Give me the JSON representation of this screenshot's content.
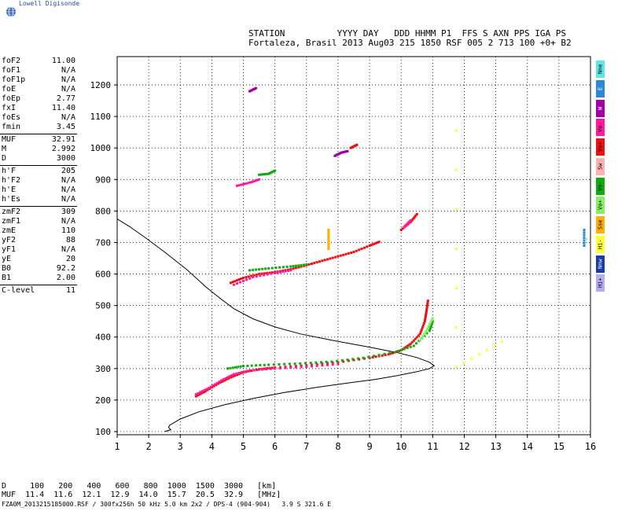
{
  "brand": {
    "title": "Lowell Digisonde",
    "logo_icon": "globe-icon"
  },
  "header": {
    "line1": "STATION          YYYY DAY   DDD HHMM P1  FFS S AXN PPS IGA PS",
    "line2": "Fortaleza, Brasil 2013 Aug03 215 1850 RSF 005 2 713 100 +0+ B2"
  },
  "params_groups": [
    [
      {
        "k": "foF2",
        "v": "11.00"
      },
      {
        "k": "foF1",
        "v": "N/A"
      },
      {
        "k": "foF1p",
        "v": "N/A"
      },
      {
        "k": "foE",
        "v": "N/A"
      },
      {
        "k": "foEp",
        "v": "2.77"
      },
      {
        "k": "fxI",
        "v": "11.40"
      },
      {
        "k": "foEs",
        "v": "N/A"
      },
      {
        "k": "fmin",
        "v": "3.45"
      }
    ],
    [
      {
        "k": "MUF",
        "v": "32.91"
      },
      {
        "k": "M",
        "v": "2.992"
      },
      {
        "k": "D",
        "v": "3000"
      }
    ],
    [
      {
        "k": "h'F",
        "v": "205"
      },
      {
        "k": "h'F2",
        "v": "N/A"
      },
      {
        "k": "h'E",
        "v": "N/A"
      },
      {
        "k": "h'Es",
        "v": "N/A"
      }
    ],
    [
      {
        "k": "zmF2",
        "v": "309"
      },
      {
        "k": "zmF1",
        "v": "N/A"
      },
      {
        "k": "zmE",
        "v": "110"
      },
      {
        "k": "yF2",
        "v": "88"
      },
      {
        "k": "yF1",
        "v": "N/A"
      },
      {
        "k": "yE",
        "v": "20"
      },
      {
        "k": "B0",
        "v": "92.2"
      },
      {
        "k": "B1",
        "v": "2.00"
      }
    ],
    [
      {
        "k": "C-level",
        "v": "11"
      }
    ]
  ],
  "legend": [
    {
      "label": "Nne",
      "color": "#5fe6e6"
    },
    {
      "label": "E",
      "color": "#2e86d6"
    },
    {
      "label": "W",
      "color": "#a000a8"
    },
    {
      "label": "Vo-",
      "color": "#ff1aa0"
    },
    {
      "label": "Vo+",
      "color": "#ee1111"
    },
    {
      "label": "Sw",
      "color": "#ffb0b0"
    },
    {
      "label": "Vo-",
      "color": "#11aa11"
    },
    {
      "label": "Vo+",
      "color": "#88ee66"
    },
    {
      "label": "Sse",
      "color": "#ffb000"
    },
    {
      "label": "Hi-",
      "color": "#ffff33"
    },
    {
      "label": "Nnw",
      "color": "#1a3aa8"
    },
    {
      "label": "Hi+",
      "color": "#b8aaf0"
    }
  ],
  "muf_table": {
    "line1": "D     100   200   400   600   800  1000  1500  3000   [km]",
    "line2": "MUF  11.4  11.6  12.1  12.9  14.0  15.7  20.5  32.9   [MHz]"
  },
  "footer": "FZA0M_2013215185000.RSF / 300fx256h 50 kHz 5.0 km 2x2 / DPS-4 (904-904)   3.9 S 321.6 E",
  "chart_data": {
    "type": "scatter",
    "xlim": [
      1,
      16
    ],
    "ylim": [
      90,
      1290
    ],
    "x_ticks": [
      1,
      2,
      3,
      4,
      5,
      6,
      7,
      8,
      9,
      10,
      11,
      12,
      13,
      14,
      15,
      16
    ],
    "y_ticks": [
      100,
      200,
      300,
      400,
      500,
      600,
      700,
      800,
      900,
      1000,
      1100,
      1200
    ],
    "grid": true,
    "edp_profile": [
      [
        2.5,
        100
      ],
      [
        2.7,
        106
      ],
      [
        2.63,
        113
      ],
      [
        2.66,
        120
      ],
      [
        3.0,
        140
      ],
      [
        3.6,
        163
      ],
      [
        4.4,
        185
      ],
      [
        5.3,
        205
      ],
      [
        6.3,
        224
      ],
      [
        7.3,
        240
      ],
      [
        8.3,
        254
      ],
      [
        9.2,
        266
      ],
      [
        9.9,
        278
      ],
      [
        10.5,
        290
      ],
      [
        10.9,
        300
      ],
      [
        11.05,
        309
      ],
      [
        10.9,
        320
      ],
      [
        10.5,
        335
      ],
      [
        9.9,
        350
      ],
      [
        9.0,
        368
      ],
      [
        7.8,
        390
      ],
      [
        6.8,
        410
      ],
      [
        6.0,
        432
      ],
      [
        5.3,
        458
      ],
      [
        4.7,
        490
      ],
      [
        4.3,
        520
      ],
      [
        3.8,
        560
      ],
      [
        3.2,
        615
      ],
      [
        2.5,
        670
      ],
      [
        1.9,
        715
      ],
      [
        1.4,
        750
      ],
      [
        1.0,
        775
      ]
    ],
    "traces": [
      {
        "mode": "Vo+",
        "color": "#ee1111",
        "points": [
          [
            3.5,
            212
          ],
          [
            3.8,
            228
          ],
          [
            4.2,
            252
          ],
          [
            4.6,
            272
          ],
          [
            5.0,
            288
          ],
          [
            5.5,
            298
          ],
          [
            6.0,
            303
          ],
          [
            7.0,
            310
          ],
          [
            8.0,
            320
          ],
          [
            9.0,
            334
          ],
          [
            9.6,
            345
          ],
          [
            10.0,
            358
          ],
          [
            10.3,
            378
          ],
          [
            10.6,
            410
          ],
          [
            10.75,
            450
          ],
          [
            10.8,
            480
          ],
          [
            10.85,
            515
          ]
        ]
      },
      {
        "mode": "Vo-",
        "color": "#ff1aa0",
        "points": [
          [
            3.5,
            218
          ],
          [
            3.9,
            238
          ],
          [
            4.3,
            262
          ],
          [
            4.7,
            282
          ],
          [
            5.2,
            294
          ],
          [
            6.0,
            300
          ],
          [
            7.0,
            306
          ],
          [
            8.0,
            314
          ]
        ]
      },
      {
        "mode": "Vo-",
        "color": "#11aa11",
        "points": [
          [
            4.5,
            300
          ],
          [
            5.0,
            308
          ],
          [
            5.8,
            312
          ],
          [
            6.8,
            316
          ],
          [
            7.8,
            322
          ],
          [
            8.8,
            334
          ],
          [
            9.8,
            352
          ],
          [
            10.4,
            372
          ],
          [
            10.9,
            420
          ],
          [
            11.0,
            450
          ]
        ]
      },
      {
        "mode": "Vo+",
        "color": "#88ee66",
        "points": [
          [
            10.6,
            390
          ],
          [
            10.8,
            420
          ],
          [
            11.0,
            460
          ]
        ]
      },
      {
        "mode": "Vo+",
        "color": "#ee1111",
        "points": [
          [
            4.6,
            572
          ],
          [
            5.0,
            588
          ],
          [
            5.5,
            600
          ],
          [
            6.0,
            606
          ],
          [
            6.5,
            615
          ],
          [
            7.0,
            628
          ],
          [
            7.5,
            642
          ],
          [
            8.0,
            656
          ],
          [
            8.5,
            670
          ],
          [
            9.0,
            690
          ],
          [
            9.3,
            702
          ]
        ]
      },
      {
        "mode": "Vo-",
        "color": "#ff1aa0",
        "points": [
          [
            4.7,
            566
          ],
          [
            5.3,
            590
          ],
          [
            6.0,
            603
          ],
          [
            6.5,
            612
          ]
        ]
      },
      {
        "mode": "Vo-",
        "color": "#11aa11",
        "points": [
          [
            5.2,
            612
          ],
          [
            5.8,
            618
          ],
          [
            6.5,
            624
          ],
          [
            7.0,
            630
          ]
        ]
      },
      {
        "mode": "Vo+",
        "color": "#ee1111",
        "points": [
          [
            10.0,
            740
          ],
          [
            10.3,
            765
          ],
          [
            10.5,
            790
          ]
        ]
      },
      {
        "mode": "Vo-",
        "color": "#ff1aa0",
        "points": [
          [
            10.1,
            750
          ],
          [
            10.3,
            770
          ]
        ]
      },
      {
        "mode": "Vo-",
        "color": "#ff1aa0",
        "points": [
          [
            4.8,
            880
          ],
          [
            5.2,
            890
          ],
          [
            5.5,
            900
          ]
        ]
      },
      {
        "mode": "Vo-",
        "color": "#11aa11",
        "points": [
          [
            5.5,
            915
          ],
          [
            5.8,
            918
          ],
          [
            6.0,
            928
          ]
        ]
      },
      {
        "mode": "W",
        "color": "#a000a8",
        "points": [
          [
            7.9,
            975
          ],
          [
            8.1,
            985
          ],
          [
            8.3,
            990
          ]
        ]
      },
      {
        "mode": "Vo+",
        "color": "#ee1111",
        "points": [
          [
            8.4,
            1000
          ],
          [
            8.6,
            1010
          ]
        ]
      },
      {
        "mode": "W",
        "color": "#a000a8",
        "points": [
          [
            5.2,
            1180
          ],
          [
            5.4,
            1190
          ]
        ]
      },
      {
        "mode": "Sse",
        "color": "#ffb000",
        "points": [
          [
            7.7,
            680
          ],
          [
            7.7,
            700
          ],
          [
            7.7,
            720
          ],
          [
            7.7,
            740
          ]
        ]
      },
      {
        "mode": "Hi-",
        "color": "#ffff33",
        "points": [
          [
            11.75,
            1055
          ],
          [
            11.75,
            305
          ],
          [
            13.2,
            385
          ]
        ]
      },
      {
        "mode": "E",
        "color": "#2e86d6",
        "points": [
          [
            15.8,
            740
          ],
          [
            15.8,
            690
          ]
        ]
      },
      {
        "mode": "Nne",
        "color": "#5fe6e6",
        "points": [
          [
            15.85,
            710
          ]
        ]
      }
    ]
  }
}
